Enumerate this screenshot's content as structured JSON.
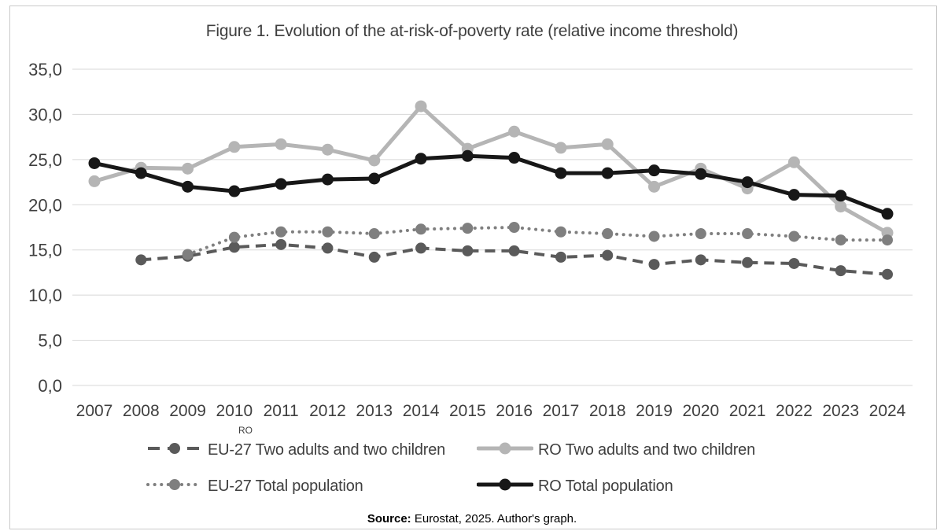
{
  "figure": {
    "title": "Figure 1. Evolution of the at-risk-of-poverty rate (relative income threshold)",
    "legend_note": "RO",
    "source_bold": "Source:",
    "source_text": "Eurostat, 2025. Author's graph."
  },
  "colors": {
    "text": "#3f3f3f",
    "gridline": "#d7d7d7",
    "frame_border": "#c9c9c9",
    "eu27_two_adults": "#5a5a5a",
    "ro_two_adults": "#b5b5b5",
    "eu27_total": "#7f7f7f",
    "ro_total": "#171717"
  },
  "chart_data": {
    "type": "line",
    "title": "Figure 1. Evolution of the at-risk-of-poverty rate (relative income threshold)",
    "x": [
      2007,
      2008,
      2009,
      2010,
      2011,
      2012,
      2013,
      2014,
      2015,
      2016,
      2017,
      2018,
      2019,
      2020,
      2021,
      2022,
      2023,
      2024
    ],
    "xlabel": "",
    "ylabel": "",
    "ylim": [
      0,
      35
    ],
    "ytick_step": 5,
    "ytick_labels": [
      "0,0",
      "5,0",
      "10,0",
      "15,0",
      "20,0",
      "25,0",
      "30,0",
      "35,0"
    ],
    "decimal_separator": ",",
    "grid": true,
    "legend_position": "bottom",
    "series": [
      {
        "name": "EU-27 Two adults and two children",
        "style": "dashed",
        "color": "#5a5a5a",
        "values": [
          null,
          13.9,
          14.3,
          15.3,
          15.6,
          15.2,
          14.2,
          15.2,
          14.9,
          14.9,
          14.2,
          14.4,
          13.4,
          13.9,
          13.6,
          13.5,
          12.7,
          12.3
        ]
      },
      {
        "name": "RO Two adults and two children",
        "style": "solid",
        "color": "#b5b5b5",
        "values": [
          22.6,
          24.1,
          24.0,
          26.4,
          26.7,
          26.1,
          24.9,
          30.9,
          26.2,
          28.1,
          26.3,
          26.7,
          22.0,
          24.0,
          21.8,
          24.7,
          19.8,
          16.9
        ]
      },
      {
        "name": "EU-27 Total population",
        "style": "dotted",
        "color": "#7f7f7f",
        "values": [
          null,
          null,
          14.5,
          16.4,
          17.0,
          17.0,
          16.8,
          17.3,
          17.4,
          17.5,
          17.0,
          16.8,
          16.5,
          16.8,
          16.8,
          16.5,
          16.1,
          16.1
        ]
      },
      {
        "name": "RO Total population",
        "style": "solid",
        "color": "#171717",
        "values": [
          24.6,
          23.5,
          22.0,
          21.5,
          22.3,
          22.8,
          22.9,
          25.1,
          25.4,
          25.2,
          23.5,
          23.5,
          23.8,
          23.4,
          22.5,
          21.1,
          21.0,
          19.0
        ]
      }
    ]
  }
}
